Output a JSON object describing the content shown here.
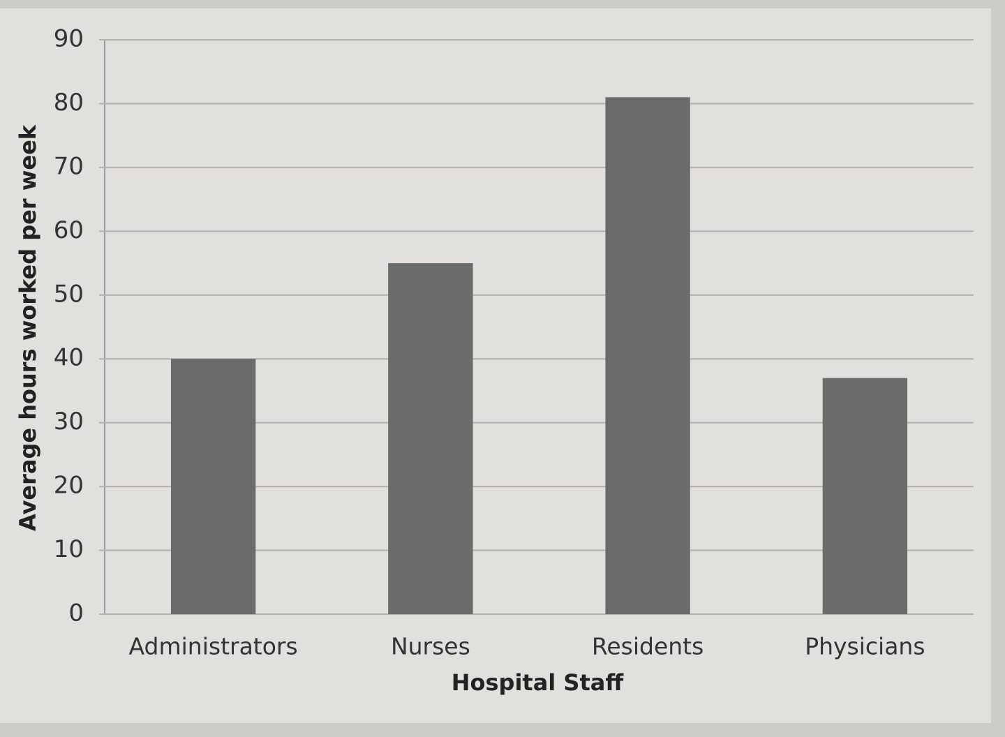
{
  "chart_data": {
    "type": "bar",
    "x_label": "Hospital Staff",
    "y_label": "Average hours worked per week",
    "categories": [
      "Administrators",
      "Nurses",
      "Residents",
      "Physicians"
    ],
    "values": [
      40,
      55,
      81,
      37
    ],
    "color": "#6b6b6b",
    "ylim": [
      0,
      90
    ],
    "yticks": [
      0,
      10,
      20,
      30,
      40,
      50,
      60,
      70,
      80,
      90
    ],
    "grid": true
  }
}
